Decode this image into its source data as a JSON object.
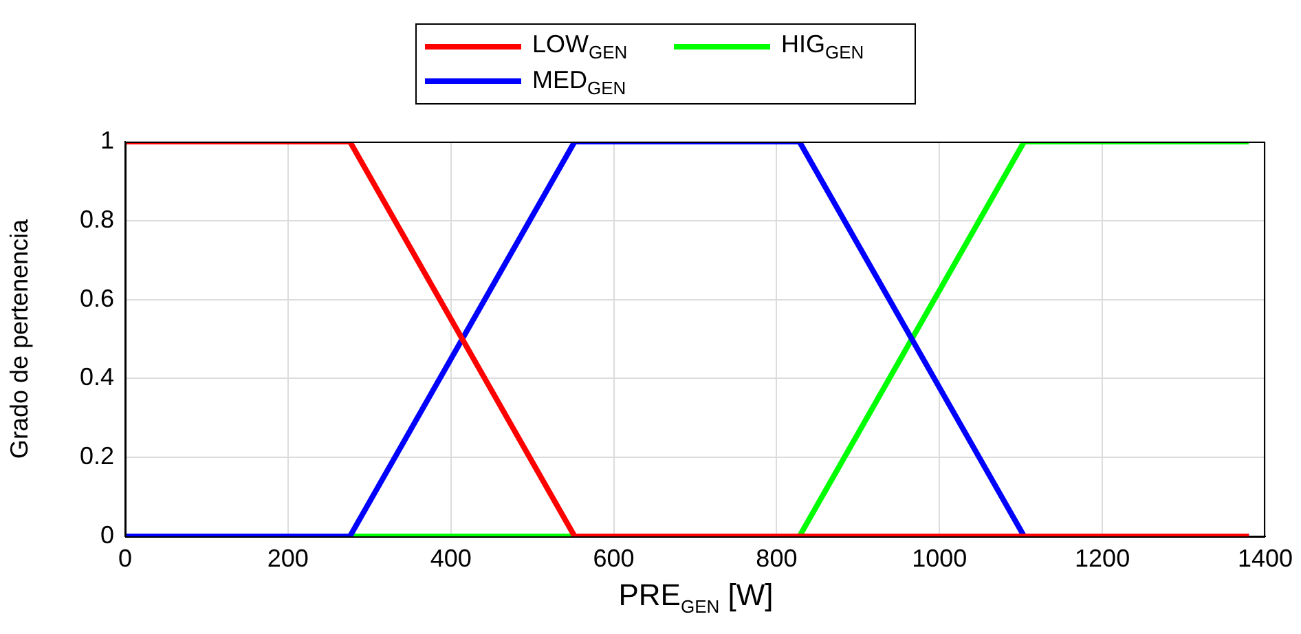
{
  "chart_data": {
    "type": "line",
    "xlabel": "PRE$_{GEN}$ [W]",
    "ylabel": "Grado de pertenencia",
    "xlim": [
      0,
      1400
    ],
    "xticks": [
      0,
      200,
      400,
      600,
      800,
      1000,
      1200,
      1400
    ],
    "ylim": [
      0,
      1
    ],
    "yticks": [
      0,
      0.2,
      0.4,
      0.6,
      0.8,
      1
    ],
    "grid": true,
    "legend": "top",
    "marker": "none",
    "line_style": "solid",
    "series": [
      {
        "name": "LOW$_{GEN}$",
        "color": "#ff0000",
        "x": [
          0,
          276,
          552,
          1380
        ],
        "values": [
          1,
          1,
          0,
          0
        ]
      },
      {
        "name": "MED$_{GEN}$",
        "color": "#0000ff",
        "x": [
          0,
          276,
          552,
          828,
          1104,
          1380
        ],
        "values": [
          0,
          0,
          1,
          1,
          0,
          0
        ]
      },
      {
        "name": "HIG$_{GEN}$",
        "color": "#00ff00",
        "x": [
          0,
          828,
          1104,
          1380
        ],
        "values": [
          0,
          0,
          1,
          1
        ]
      }
    ]
  }
}
